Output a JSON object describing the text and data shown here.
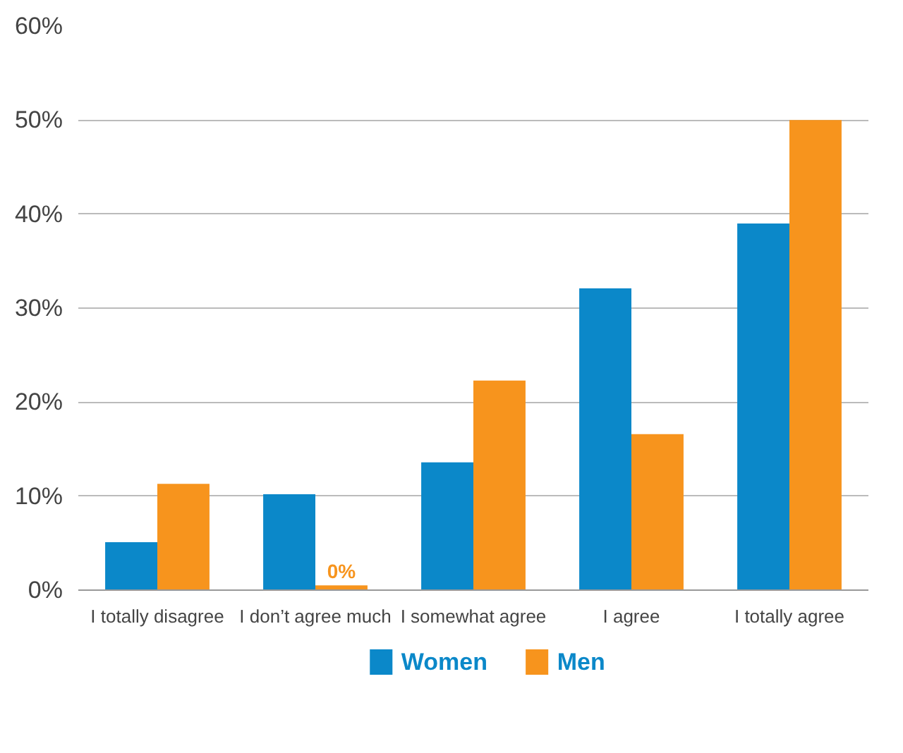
{
  "chart_data": {
    "type": "bar",
    "categories": [
      "I totally disagree",
      "I don’t agree much",
      "I somewhat agree",
      "I agree",
      "I totally agree"
    ],
    "series": [
      {
        "name": "Women",
        "color": "#0b88c9",
        "values": [
          5.1,
          10.2,
          13.6,
          32.1,
          39.0
        ]
      },
      {
        "name": "Men",
        "color": "#f7941d",
        "values": [
          11.3,
          0.5,
          22.3,
          16.6,
          50.0
        ],
        "value_labels": [
          null,
          "0%",
          null,
          null,
          null
        ]
      }
    ],
    "ylim": [
      0,
      60
    ],
    "yticks": [
      {
        "value": 0,
        "label": "0%"
      },
      {
        "value": 10,
        "label": "10%"
      },
      {
        "value": 20,
        "label": "20%"
      },
      {
        "value": 30,
        "label": "30%"
      },
      {
        "value": 40,
        "label": "40%"
      },
      {
        "value": 50,
        "label": "50%"
      },
      {
        "value": 60,
        "label": "60%"
      }
    ],
    "grid": "y",
    "legend": "bottom"
  }
}
